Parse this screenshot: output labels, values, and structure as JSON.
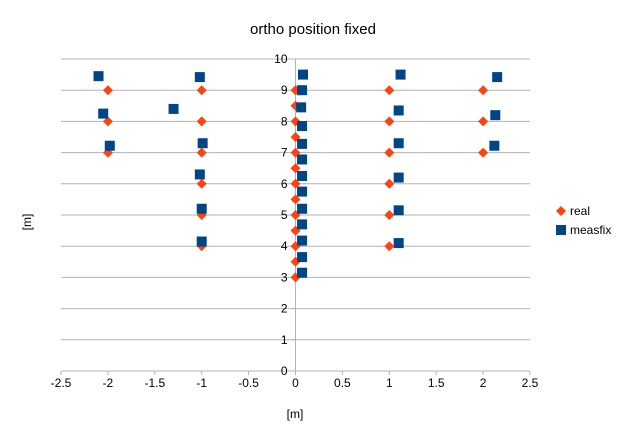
{
  "chart_data": {
    "type": "scatter",
    "title": "ortho position fixed",
    "xlabel": "[m]",
    "ylabel": "[m]",
    "xlim": [
      -2.5,
      2.5
    ],
    "ylim": [
      0,
      10
    ],
    "xticks": [
      -2.5,
      -2,
      -1.5,
      -1,
      -0.5,
      0,
      0.5,
      1,
      1.5,
      2,
      2.5
    ],
    "yticks": [
      0,
      1,
      2,
      3,
      4,
      5,
      6,
      7,
      8,
      9,
      10
    ],
    "xtick_labels": [
      "-2.5",
      "-2",
      "-1.5",
      "-1",
      "-0.5",
      "0",
      "0.5",
      "1",
      "1.5",
      "2",
      "2.5"
    ],
    "ytick_labels": [
      "0",
      "1",
      "2",
      "3",
      "4",
      "5",
      "6",
      "7",
      "8",
      "9",
      "10"
    ],
    "grid": "horizontal",
    "legend": "right",
    "series": [
      {
        "name": "real",
        "marker": "diamond",
        "color": "#ff420e",
        "points": [
          [
            -2,
            9
          ],
          [
            -2,
            8
          ],
          [
            -2,
            7
          ],
          [
            -1,
            9
          ],
          [
            -1,
            8
          ],
          [
            -1,
            7
          ],
          [
            -1,
            6
          ],
          [
            -1,
            5
          ],
          [
            -1,
            4
          ],
          [
            0,
            9
          ],
          [
            0,
            8.5
          ],
          [
            0,
            8
          ],
          [
            0,
            7.5
          ],
          [
            0,
            7
          ],
          [
            0,
            6.5
          ],
          [
            0,
            6
          ],
          [
            0,
            5.5
          ],
          [
            0,
            5
          ],
          [
            0,
            4.5
          ],
          [
            0,
            4
          ],
          [
            0,
            3.5
          ],
          [
            0,
            3
          ],
          [
            1,
            9
          ],
          [
            1,
            8
          ],
          [
            1,
            7
          ],
          [
            1,
            6
          ],
          [
            1,
            5
          ],
          [
            1,
            4
          ],
          [
            2,
            9
          ],
          [
            2,
            8
          ],
          [
            2,
            7
          ]
        ]
      },
      {
        "name": "measfix",
        "marker": "square",
        "color": "#004586",
        "points": [
          [
            -2.1,
            9.45
          ],
          [
            -2.05,
            8.25
          ],
          [
            -1.98,
            7.22
          ],
          [
            -1.3,
            8.4
          ],
          [
            -1.02,
            9.42
          ],
          [
            -0.99,
            7.3
          ],
          [
            -1.02,
            6.3
          ],
          [
            -1.0,
            5.2
          ],
          [
            -1.0,
            4.15
          ],
          [
            0.08,
            9.5
          ],
          [
            0.07,
            9.0
          ],
          [
            0.06,
            8.45
          ],
          [
            0.07,
            7.85
          ],
          [
            0.07,
            7.28
          ],
          [
            0.07,
            6.78
          ],
          [
            0.07,
            6.25
          ],
          [
            0.07,
            5.75
          ],
          [
            0.07,
            5.2
          ],
          [
            0.07,
            4.7
          ],
          [
            0.07,
            4.18
          ],
          [
            0.07,
            3.65
          ],
          [
            0.07,
            3.15
          ],
          [
            1.12,
            9.5
          ],
          [
            1.1,
            8.35
          ],
          [
            1.1,
            7.3
          ],
          [
            1.1,
            6.2
          ],
          [
            1.1,
            5.15
          ],
          [
            1.1,
            4.1
          ],
          [
            2.15,
            9.42
          ],
          [
            2.13,
            8.2
          ],
          [
            2.12,
            7.22
          ]
        ]
      }
    ]
  }
}
